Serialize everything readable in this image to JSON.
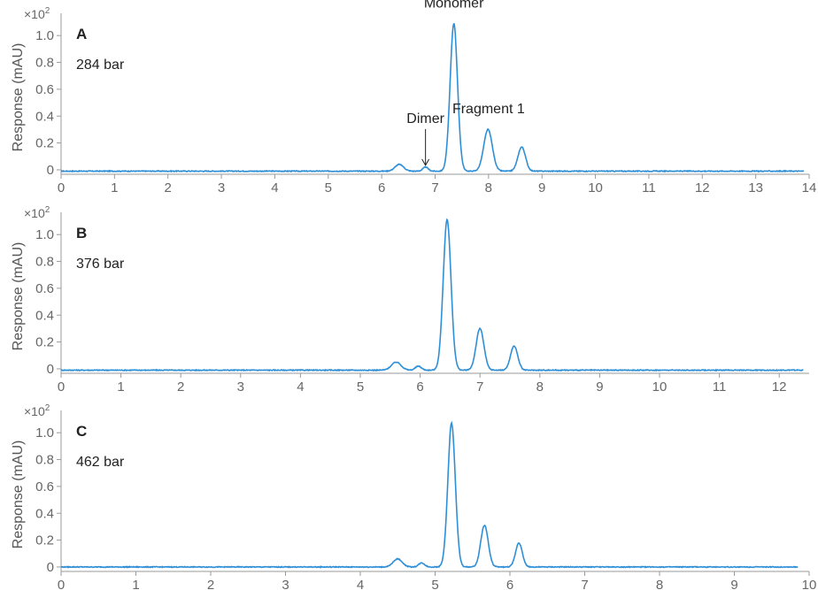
{
  "colors": {
    "trace": "#2f8fd6",
    "axis": "#9a9a9a",
    "text": "#222222",
    "tick_text": "#666666"
  },
  "chart_data": [
    {
      "type": "line",
      "panel_label": "A",
      "pressure_label": "284 bar",
      "ylabel": "Response (mAU)",
      "y_multiplier": "×10²",
      "xlim": [
        0,
        14
      ],
      "ylim": [
        -0.02,
        1.1
      ],
      "xticks": [
        0,
        1,
        2,
        3,
        4,
        5,
        6,
        7,
        8,
        9,
        10,
        11,
        12,
        13,
        14
      ],
      "yticks": [
        0,
        0.2,
        0.4,
        0.6,
        0.8,
        1.0
      ],
      "ytick_labels": [
        "0",
        "0.2",
        "0.4",
        "0.6",
        "0.8",
        "1.0"
      ],
      "baseline": -0.01,
      "trace_end": 13.9,
      "peaks": [
        {
          "x": 6.33,
          "height": 0.05,
          "width": 0.08
        },
        {
          "x": 6.82,
          "height": 0.03,
          "width": 0.05
        },
        {
          "x": 7.35,
          "height": 1.1,
          "width": 0.07
        },
        {
          "x": 7.99,
          "height": 0.31,
          "width": 0.08
        },
        {
          "x": 8.62,
          "height": 0.18,
          "width": 0.07
        }
      ],
      "annotations": [
        {
          "text": "Monomer",
          "x": 7.35,
          "y": 1.21
        },
        {
          "text": "Fragment 1",
          "x": 8.0,
          "y": 0.42
        },
        {
          "text": "Dimer",
          "x": 6.82,
          "y": 0.35,
          "arrow_to": 0.02
        }
      ]
    },
    {
      "type": "line",
      "panel_label": "B",
      "pressure_label": "376 bar",
      "ylabel": "Response (mAU)",
      "y_multiplier": "×10²",
      "xlim": [
        0,
        12.5
      ],
      "ylim": [
        -0.02,
        1.1
      ],
      "xticks": [
        0,
        1,
        2,
        3,
        4,
        5,
        6,
        7,
        8,
        9,
        10,
        11,
        12
      ],
      "yticks": [
        0,
        0.2,
        0.4,
        0.6,
        0.8,
        1.0
      ],
      "ytick_labels": [
        "0",
        "0.2",
        "0.4",
        "0.6",
        "0.8",
        "1.0"
      ],
      "baseline": -0.01,
      "trace_end": 12.4,
      "peaks": [
        {
          "x": 5.6,
          "height": 0.06,
          "width": 0.08
        },
        {
          "x": 5.97,
          "height": 0.03,
          "width": 0.05
        },
        {
          "x": 6.45,
          "height": 1.12,
          "width": 0.065
        },
        {
          "x": 7.0,
          "height": 0.31,
          "width": 0.065
        },
        {
          "x": 7.57,
          "height": 0.18,
          "width": 0.06
        }
      ],
      "annotations": []
    },
    {
      "type": "line",
      "panel_label": "C",
      "pressure_label": "462 bar",
      "ylabel": "Response (mAU)",
      "y_multiplier": "×10²",
      "xlim": [
        0,
        10
      ],
      "ylim": [
        -0.02,
        1.1
      ],
      "xticks": [
        0,
        1,
        2,
        3,
        4,
        5,
        6,
        7,
        8,
        9,
        10
      ],
      "yticks": [
        0,
        0.2,
        0.4,
        0.6,
        0.8,
        1.0
      ],
      "ytick_labels": [
        "0",
        "0.2",
        "0.4",
        "0.6",
        "0.8",
        "1.0"
      ],
      "baseline": 0,
      "trace_end": 9.85,
      "peaks": [
        {
          "x": 4.5,
          "height": 0.06,
          "width": 0.06
        },
        {
          "x": 4.82,
          "height": 0.03,
          "width": 0.04
        },
        {
          "x": 5.22,
          "height": 1.07,
          "width": 0.05
        },
        {
          "x": 5.66,
          "height": 0.31,
          "width": 0.05
        },
        {
          "x": 6.12,
          "height": 0.18,
          "width": 0.045
        }
      ],
      "annotations": []
    }
  ]
}
